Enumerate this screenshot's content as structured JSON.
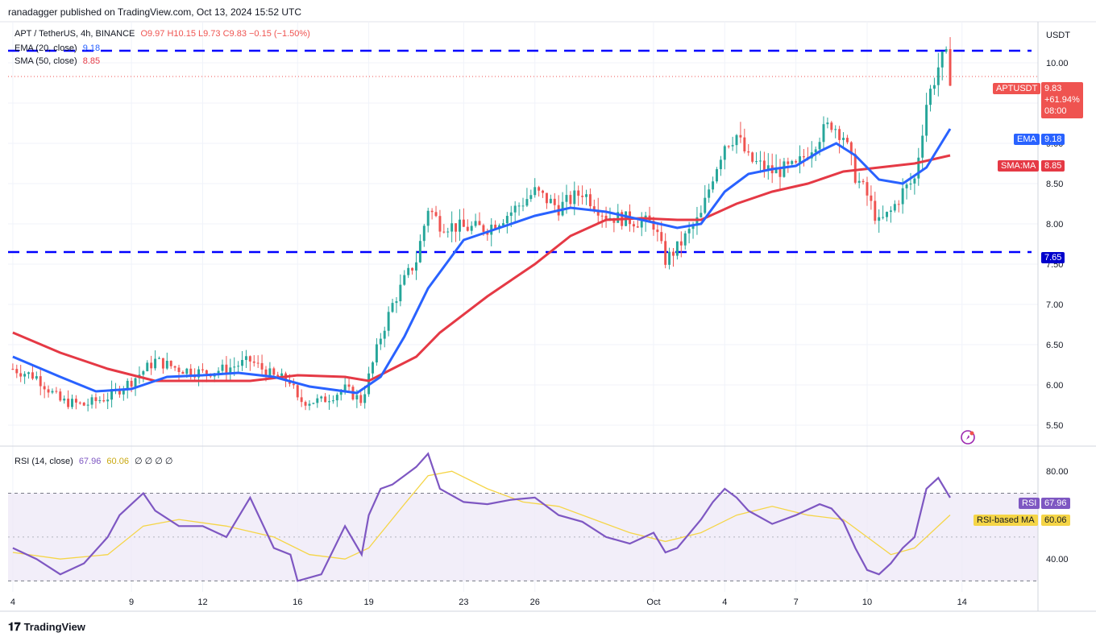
{
  "header": {
    "publisher": "ranadagger published on TradingView.com, Oct 13, 2024 15:52 UTC"
  },
  "legend": {
    "symbol": "APT / TetherUS, 4h, BINANCE",
    "ohlc": "O9.97 H10.15 L9.73 C9.83 −0.15 (−1.50%)",
    "ema_label": "EMA (20, close)",
    "ema_value": "9.18",
    "sma_label": "SMA (50, close)",
    "sma_value": "8.85"
  },
  "rsi_legend": {
    "label": "RSI (14, close)",
    "rsi_value": "67.96",
    "ma_value": "60.06",
    "extras": "∅ ∅ ∅ ∅"
  },
  "axis": {
    "currency": "USDT"
  },
  "tags": {
    "price_name": "APTUSDT",
    "price_value": "9.83",
    "price_change": "+61.94%",
    "price_time": "08:00",
    "ema_name": "EMA",
    "ema_value": "9.18",
    "sma_name": "SMA:MA",
    "sma_value": "8.85",
    "support_value": "7.65",
    "rsi_name": "RSI",
    "rsi_value": "67.96",
    "rsi_ma_name": "RSI-based MA",
    "rsi_ma_value": "60.06"
  },
  "footer": {
    "brand": "TradingView"
  },
  "colors": {
    "ema": "#2962ff",
    "sma": "#e53945",
    "up": "#26a69a",
    "down": "#ef5350",
    "level": "#0000ff",
    "rsi": "#7e57c2",
    "rsi_ma": "#f5d547",
    "rsi_band": "#ede7f6"
  },
  "chart_data": {
    "type": "candlestick",
    "price_axis": {
      "ticks": [
        10.0,
        9.5,
        9.0,
        8.5,
        8.0,
        7.5,
        7.0,
        6.5,
        6.0,
        5.5
      ],
      "tick_labels": [
        "10.00",
        "9.50",
        "9.00",
        "8.50",
        "8.00",
        "7.50",
        "7.00",
        "6.50",
        "6.00",
        "5.50"
      ],
      "range": [
        5.3,
        10.5
      ]
    },
    "time_axis": {
      "labels": [
        "4",
        "9",
        "12",
        "16",
        "19",
        "23",
        "26",
        "Oct",
        "4",
        "7",
        "10",
        "14"
      ],
      "label_days": [
        4,
        9,
        12,
        16,
        19,
        23,
        26,
        31,
        34,
        37,
        40,
        44
      ],
      "range_days": [
        3.8,
        47.2
      ]
    },
    "horizontal_levels": [
      10.15,
      7.65
    ],
    "price_path": [
      [
        4.0,
        6.2
      ],
      [
        5.0,
        6.1
      ],
      [
        6.0,
        5.8
      ],
      [
        7.0,
        5.75
      ],
      [
        8.0,
        5.85
      ],
      [
        9.0,
        6.05
      ],
      [
        10.0,
        6.3
      ],
      [
        11.0,
        6.2
      ],
      [
        12.0,
        6.15
      ],
      [
        13.0,
        6.2
      ],
      [
        14.0,
        6.3
      ],
      [
        15.0,
        6.1
      ],
      [
        15.7,
        6.05
      ],
      [
        16.0,
        5.8
      ],
      [
        17.0,
        5.8
      ],
      [
        18.0,
        5.95
      ],
      [
        18.7,
        5.8
      ],
      [
        19.0,
        6.1
      ],
      [
        19.5,
        6.6
      ],
      [
        20.0,
        7.0
      ],
      [
        20.5,
        7.3
      ],
      [
        21.0,
        7.55
      ],
      [
        21.5,
        8.2
      ],
      [
        22.0,
        8.0
      ],
      [
        23.0,
        7.95
      ],
      [
        24.0,
        7.95
      ],
      [
        25.0,
        8.15
      ],
      [
        26.0,
        8.4
      ],
      [
        27.0,
        8.2
      ],
      [
        28.0,
        8.4
      ],
      [
        29.0,
        8.1
      ],
      [
        30.0,
        8.05
      ],
      [
        31.0,
        8.0
      ],
      [
        31.5,
        7.55
      ],
      [
        32.0,
        7.7
      ],
      [
        33.0,
        8.1
      ],
      [
        33.5,
        8.6
      ],
      [
        34.0,
        9.0
      ],
      [
        34.5,
        9.1
      ],
      [
        35.0,
        8.8
      ],
      [
        36.0,
        8.65
      ],
      [
        37.0,
        8.7
      ],
      [
        38.0,
        9.1
      ],
      [
        38.5,
        9.25
      ],
      [
        39.0,
        9.1
      ],
      [
        39.5,
        8.6
      ],
      [
        40.0,
        8.35
      ],
      [
        40.5,
        8.0
      ],
      [
        41.0,
        8.15
      ],
      [
        41.5,
        8.4
      ],
      [
        42.0,
        8.55
      ],
      [
        42.5,
        9.5
      ],
      [
        43.0,
        9.95
      ],
      [
        43.3,
        10.1
      ],
      [
        43.5,
        9.83
      ]
    ],
    "ema_20": [
      [
        4.0,
        6.35
      ],
      [
        6.0,
        6.1
      ],
      [
        7.5,
        5.92
      ],
      [
        9.0,
        5.95
      ],
      [
        10.5,
        6.1
      ],
      [
        12.0,
        6.12
      ],
      [
        13.5,
        6.15
      ],
      [
        15.0,
        6.1
      ],
      [
        16.5,
        5.98
      ],
      [
        18.5,
        5.9
      ],
      [
        19.5,
        6.1
      ],
      [
        20.5,
        6.6
      ],
      [
        21.5,
        7.2
      ],
      [
        23.0,
        7.8
      ],
      [
        24.5,
        7.95
      ],
      [
        26.0,
        8.1
      ],
      [
        27.5,
        8.2
      ],
      [
        29.0,
        8.15
      ],
      [
        30.5,
        8.05
      ],
      [
        32.0,
        7.95
      ],
      [
        33.0,
        8.0
      ],
      [
        34.0,
        8.4
      ],
      [
        35.0,
        8.62
      ],
      [
        36.0,
        8.68
      ],
      [
        37.0,
        8.72
      ],
      [
        38.0,
        8.9
      ],
      [
        38.7,
        9.0
      ],
      [
        39.5,
        8.85
      ],
      [
        40.5,
        8.55
      ],
      [
        41.5,
        8.5
      ],
      [
        42.5,
        8.7
      ],
      [
        43.5,
        9.18
      ]
    ],
    "sma_50": [
      [
        4.0,
        6.65
      ],
      [
        6.0,
        6.4
      ],
      [
        8.0,
        6.2
      ],
      [
        10.0,
        6.05
      ],
      [
        12.0,
        6.05
      ],
      [
        14.0,
        6.05
      ],
      [
        16.0,
        6.12
      ],
      [
        18.0,
        6.1
      ],
      [
        19.0,
        6.05
      ],
      [
        20.0,
        6.2
      ],
      [
        21.0,
        6.35
      ],
      [
        22.0,
        6.65
      ],
      [
        24.0,
        7.1
      ],
      [
        26.0,
        7.5
      ],
      [
        27.5,
        7.85
      ],
      [
        29.0,
        8.05
      ],
      [
        30.5,
        8.07
      ],
      [
        32.0,
        8.05
      ],
      [
        33.0,
        8.05
      ],
      [
        34.5,
        8.25
      ],
      [
        36.0,
        8.4
      ],
      [
        37.5,
        8.5
      ],
      [
        39.0,
        8.65
      ],
      [
        40.5,
        8.7
      ],
      [
        42.0,
        8.75
      ],
      [
        43.5,
        8.85
      ]
    ],
    "rsi_axis": {
      "ticks": [
        80,
        40
      ],
      "tick_labels": [
        "80.00",
        "40.00"
      ],
      "range": [
        25,
        90
      ],
      "band": [
        30,
        70
      ],
      "midline": 50
    },
    "rsi": [
      [
        4.0,
        45
      ],
      [
        5.0,
        40
      ],
      [
        6.0,
        33
      ],
      [
        7.0,
        38
      ],
      [
        8.0,
        50
      ],
      [
        8.5,
        60
      ],
      [
        9.0,
        65
      ],
      [
        9.5,
        70
      ],
      [
        10.0,
        62
      ],
      [
        11.0,
        55
      ],
      [
        12.0,
        55
      ],
      [
        13.0,
        50
      ],
      [
        14.0,
        68
      ],
      [
        15.0,
        45
      ],
      [
        15.7,
        42
      ],
      [
        16.0,
        30
      ],
      [
        17.0,
        33
      ],
      [
        18.0,
        55
      ],
      [
        18.7,
        42
      ],
      [
        19.0,
        60
      ],
      [
        19.5,
        72
      ],
      [
        20.0,
        74
      ],
      [
        20.5,
        78
      ],
      [
        21.0,
        82
      ],
      [
        21.5,
        88
      ],
      [
        22.0,
        72
      ],
      [
        23.0,
        66
      ],
      [
        24.0,
        65
      ],
      [
        25.0,
        67
      ],
      [
        26.0,
        68
      ],
      [
        27.0,
        60
      ],
      [
        28.0,
        57
      ],
      [
        29.0,
        50
      ],
      [
        30.0,
        47
      ],
      [
        31.0,
        52
      ],
      [
        31.5,
        43
      ],
      [
        32.0,
        45
      ],
      [
        33.0,
        58
      ],
      [
        33.5,
        66
      ],
      [
        34.0,
        72
      ],
      [
        34.5,
        68
      ],
      [
        35.0,
        62
      ],
      [
        36.0,
        56
      ],
      [
        37.0,
        60
      ],
      [
        38.0,
        65
      ],
      [
        38.5,
        63
      ],
      [
        39.0,
        57
      ],
      [
        39.5,
        45
      ],
      [
        40.0,
        35
      ],
      [
        40.5,
        33
      ],
      [
        41.0,
        38
      ],
      [
        41.5,
        45
      ],
      [
        42.0,
        50
      ],
      [
        42.5,
        72
      ],
      [
        43.0,
        77
      ],
      [
        43.5,
        67.96
      ]
    ],
    "rsi_ma": [
      [
        4.0,
        43
      ],
      [
        6.0,
        40
      ],
      [
        8.0,
        42
      ],
      [
        9.5,
        55
      ],
      [
        11.0,
        58
      ],
      [
        13.0,
        55
      ],
      [
        15.0,
        50
      ],
      [
        16.5,
        42
      ],
      [
        18.0,
        40
      ],
      [
        19.0,
        45
      ],
      [
        20.5,
        65
      ],
      [
        21.5,
        78
      ],
      [
        22.5,
        80
      ],
      [
        24.0,
        72
      ],
      [
        25.5,
        66
      ],
      [
        27.0,
        64
      ],
      [
        28.5,
        58
      ],
      [
        30.0,
        52
      ],
      [
        31.5,
        48
      ],
      [
        33.0,
        52
      ],
      [
        34.5,
        60
      ],
      [
        36.0,
        64
      ],
      [
        37.5,
        60
      ],
      [
        39.0,
        58
      ],
      [
        40.0,
        50
      ],
      [
        41.0,
        42
      ],
      [
        42.0,
        45
      ],
      [
        43.5,
        60.06
      ]
    ]
  }
}
